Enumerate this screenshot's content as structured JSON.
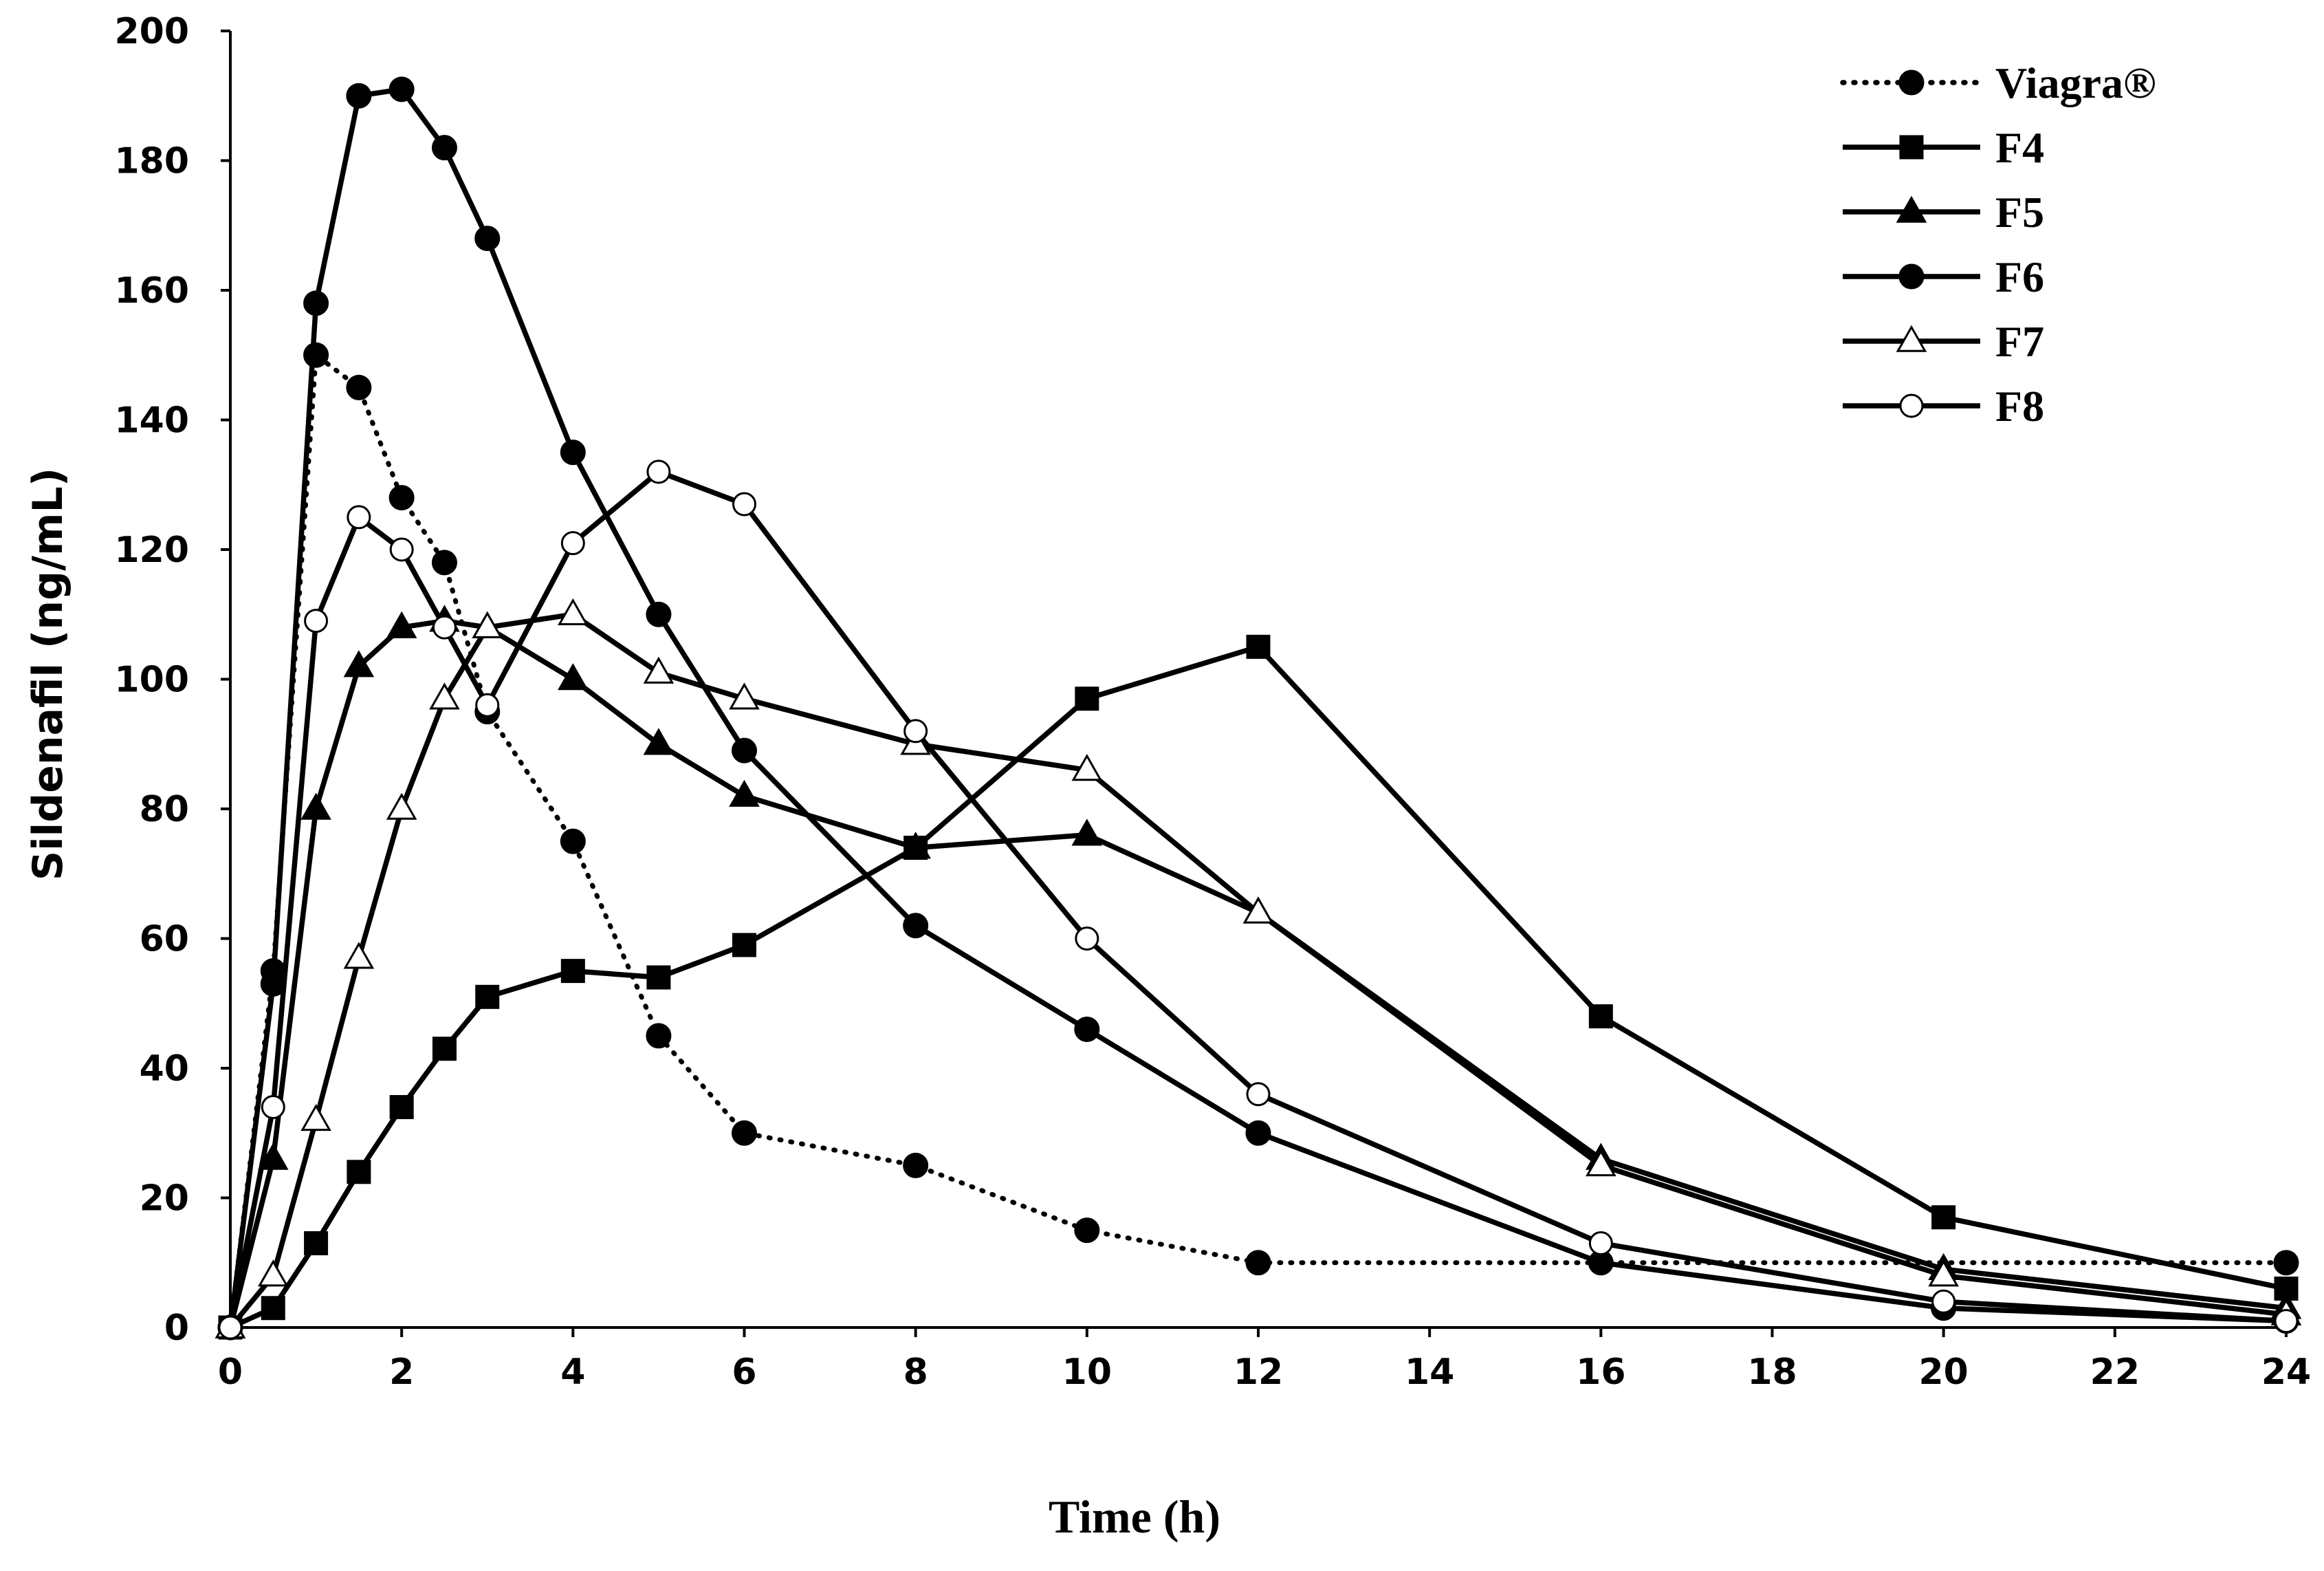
{
  "chart_data": {
    "type": "line",
    "title": "",
    "xlabel": "Time (h)",
    "ylabel": "Sildenafil (ng/mL)",
    "xlim": [
      0,
      24
    ],
    "ylim": [
      0,
      200
    ],
    "xticks": [
      "0",
      "2",
      "4",
      "6",
      "8",
      "10",
      "12",
      "14",
      "16",
      "18",
      "20",
      "22",
      "24"
    ],
    "yticks": [
      "0",
      "20",
      "40",
      "60",
      "80",
      "100",
      "120",
      "140",
      "160",
      "180",
      "200"
    ],
    "legend_position": "top-right",
    "grid": false,
    "series": [
      {
        "name": "Viagra®",
        "marker": "filled-circle",
        "line": "dotted",
        "x": [
          0,
          0.5,
          1,
          1.5,
          2,
          2.5,
          3,
          4,
          5,
          6,
          8,
          10,
          12,
          24
        ],
        "y": [
          0,
          55,
          150,
          145,
          128,
          118,
          95,
          75,
          45,
          30,
          25,
          15,
          10,
          10
        ]
      },
      {
        "name": "F4",
        "marker": "filled-square",
        "line": "solid",
        "x": [
          0,
          0.5,
          1,
          1.5,
          2,
          2.5,
          3,
          4,
          5,
          6,
          8,
          10,
          12,
          16,
          20,
          24
        ],
        "y": [
          0,
          3,
          13,
          24,
          34,
          43,
          51,
          55,
          54,
          59,
          74,
          97,
          105,
          48,
          17,
          6
        ]
      },
      {
        "name": "F5",
        "marker": "filled-triangle",
        "line": "solid",
        "x": [
          0,
          0.5,
          1,
          1.5,
          2,
          2.5,
          3,
          4,
          5,
          6,
          8,
          10,
          12,
          16,
          20,
          24
        ],
        "y": [
          0,
          26,
          80,
          102,
          108,
          109,
          108,
          100,
          90,
          82,
          74,
          76,
          64,
          26,
          9,
          3
        ]
      },
      {
        "name": "F6",
        "marker": "filled-circle",
        "line": "solid",
        "x": [
          0,
          0.5,
          1,
          1.5,
          2,
          2.5,
          3,
          4,
          5,
          6,
          8,
          10,
          12,
          16,
          20,
          24
        ],
        "y": [
          0,
          53,
          158,
          190,
          191,
          182,
          168,
          135,
          110,
          89,
          62,
          46,
          30,
          10,
          3,
          1
        ]
      },
      {
        "name": "F7",
        "marker": "open-triangle",
        "line": "solid",
        "x": [
          0,
          0.5,
          1,
          1.5,
          2,
          2.5,
          3,
          4,
          5,
          6,
          8,
          10,
          12,
          16,
          20,
          24
        ],
        "y": [
          0,
          8,
          32,
          57,
          80,
          97,
          108,
          110,
          101,
          97,
          90,
          86,
          64,
          25,
          8,
          2
        ]
      },
      {
        "name": "F8",
        "marker": "open-circle",
        "line": "solid",
        "x": [
          0,
          0.5,
          1,
          1.5,
          2,
          2.5,
          3,
          4,
          5,
          6,
          8,
          10,
          12,
          16,
          20,
          24
        ],
        "y": [
          0,
          34,
          109,
          125,
          120,
          108,
          96,
          121,
          132,
          127,
          92,
          60,
          36,
          13,
          4,
          1
        ]
      }
    ]
  }
}
